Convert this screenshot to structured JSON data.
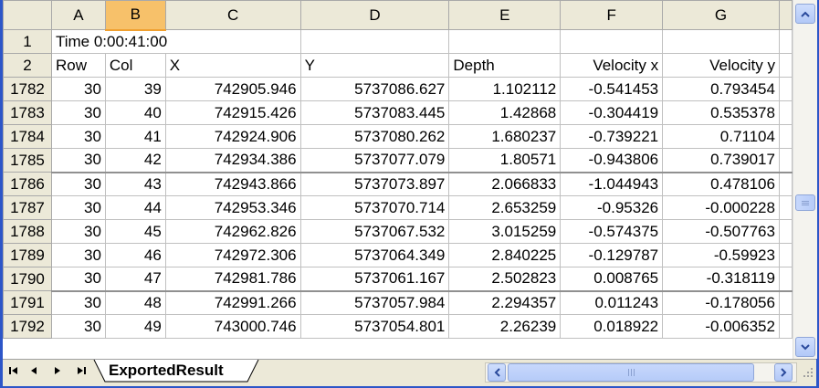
{
  "columns": [
    "A",
    "B",
    "C",
    "D",
    "E",
    "F",
    "G"
  ],
  "selected_column": "B",
  "row1": {
    "number": "1",
    "text": "Time 0:00:41:00"
  },
  "row2": {
    "number": "2",
    "headers": [
      "Row",
      "Col",
      "X",
      "Y",
      "Depth",
      "Velocity x",
      "Velocity y"
    ]
  },
  "rows": [
    {
      "n": "1782",
      "row": "30",
      "col": "39",
      "x": "742905.946",
      "y": "5737086.627",
      "depth": "1.102112",
      "vx": "-0.541453",
      "vy": "0.793454"
    },
    {
      "n": "1783",
      "row": "30",
      "col": "40",
      "x": "742915.426",
      "y": "5737083.445",
      "depth": "1.42868",
      "vx": "-0.304419",
      "vy": "0.535378"
    },
    {
      "n": "1784",
      "row": "30",
      "col": "41",
      "x": "742924.906",
      "y": "5737080.262",
      "depth": "1.680237",
      "vx": "-0.739221",
      "vy": "0.71104"
    },
    {
      "n": "1785",
      "row": "30",
      "col": "42",
      "x": "742934.386",
      "y": "5737077.079",
      "depth": "1.80571",
      "vx": "-0.943806",
      "vy": "0.739017"
    },
    {
      "n": "1786",
      "row": "30",
      "col": "43",
      "x": "742943.866",
      "y": "5737073.897",
      "depth": "2.066833",
      "vx": "-1.044943",
      "vy": "0.478106"
    },
    {
      "n": "1787",
      "row": "30",
      "col": "44",
      "x": "742953.346",
      "y": "5737070.714",
      "depth": "2.653259",
      "vx": "-0.95326",
      "vy": "-0.000228"
    },
    {
      "n": "1788",
      "row": "30",
      "col": "45",
      "x": "742962.826",
      "y": "5737067.532",
      "depth": "3.015259",
      "vx": "-0.574375",
      "vy": "-0.507763"
    },
    {
      "n": "1789",
      "row": "30",
      "col": "46",
      "x": "742972.306",
      "y": "5737064.349",
      "depth": "2.840225",
      "vx": "-0.129787",
      "vy": "-0.59923"
    },
    {
      "n": "1790",
      "row": "30",
      "col": "47",
      "x": "742981.786",
      "y": "5737061.167",
      "depth": "2.502823",
      "vx": "0.008765",
      "vy": "-0.318119"
    },
    {
      "n": "1791",
      "row": "30",
      "col": "48",
      "x": "742991.266",
      "y": "5737057.984",
      "depth": "2.294357",
      "vx": "0.011243",
      "vy": "-0.178056"
    },
    {
      "n": "1792",
      "row": "30",
      "col": "49",
      "x": "743000.746",
      "y": "5737054.801",
      "depth": "2.26239",
      "vx": "0.018922",
      "vy": "-0.006352"
    }
  ],
  "sheet_tab": "ExportedResult",
  "icons": {
    "first_sheet": "first-sheet-icon",
    "prev_sheet": "prev-sheet-icon",
    "next_sheet": "next-sheet-icon",
    "last_sheet": "last-sheet-icon",
    "scroll_up": "arrow-up-icon",
    "scroll_down": "arrow-down-icon",
    "scroll_left": "arrow-left-icon",
    "scroll_right": "arrow-right-icon"
  },
  "colors": {
    "selected_header": "#f7c16a",
    "header_bg": "#ece9d8",
    "window_border": "#2d56c8",
    "scrollbar": "#b6cbf8"
  }
}
